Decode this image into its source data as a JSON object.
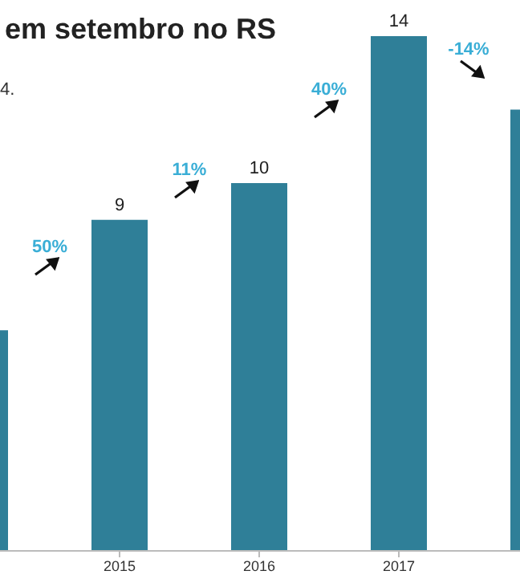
{
  "chart_data": {
    "type": "bar",
    "title": "em setembro no RS",
    "subtitle": "4.",
    "categories": [
      null,
      "2015",
      "2016",
      "2017",
      null
    ],
    "values": [
      6,
      9,
      10,
      14,
      12
    ],
    "value_labels": [
      null,
      "9",
      "10",
      "14",
      null
    ],
    "color": "#2f7f98",
    "annotations": [
      "50%",
      "11%",
      "40%",
      "-14%"
    ],
    "grid": false,
    "legend": false
  }
}
